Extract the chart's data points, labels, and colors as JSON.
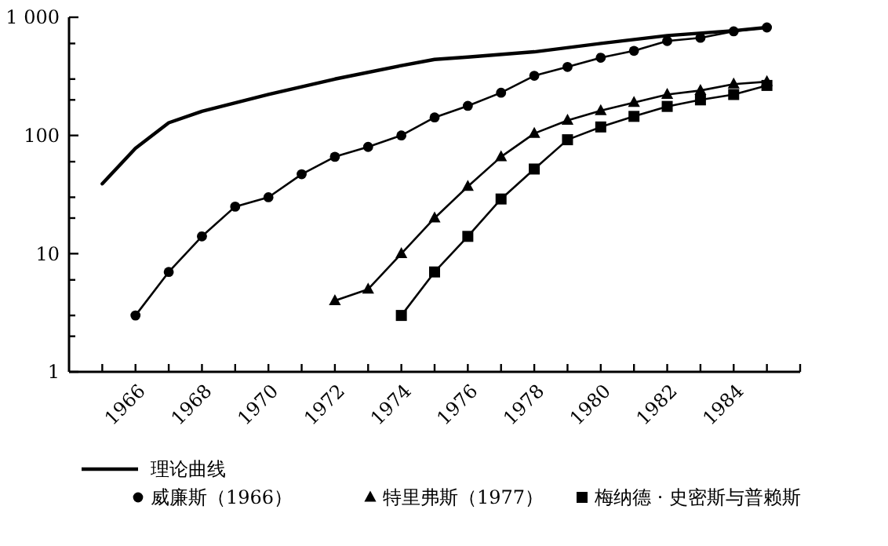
{
  "chart_data": {
    "type": "line",
    "log": "y",
    "xlim": [
      1964,
      1986
    ],
    "xticks": [
      {
        "value": 1965,
        "label": null
      },
      1966,
      {
        "value": 1967,
        "label": null
      },
      1968,
      {
        "value": 1969,
        "label": null
      },
      1970,
      {
        "value": 1971,
        "label": null
      },
      1972,
      {
        "value": 1973,
        "label": null
      },
      1974,
      {
        "value": 1975,
        "label": null
      },
      1976,
      {
        "value": 1977,
        "label": null
      },
      1978,
      {
        "value": 1979,
        "label": null
      },
      1980,
      {
        "value": 1981,
        "label": null
      },
      1982,
      {
        "value": 1983,
        "label": null
      },
      1984,
      {
        "value": 1985,
        "label": null
      },
      {
        "value": 1986,
        "label": null
      }
    ],
    "ylim": [
      1,
      1000
    ],
    "yticks": [
      1,
      {
        "value": 2,
        "label": null
      },
      {
        "value": 3,
        "label": null
      },
      {
        "value": 6,
        "label": null
      },
      10,
      {
        "value": 20,
        "label": null
      },
      {
        "value": 30,
        "label": null
      },
      {
        "value": 60,
        "label": null
      },
      100,
      {
        "value": 200,
        "label": null
      },
      {
        "value": 300,
        "label": null
      },
      {
        "value": 600,
        "label": null
      },
      {
        "value": 1000,
        "label": "1 000"
      }
    ],
    "grid": false,
    "legend": "bottom",
    "series": [
      {
        "name": "理论曲线",
        "color": "#000000",
        "marker": "none",
        "x": [
          1965,
          1966,
          1967,
          1968,
          1970,
          1972,
          1974,
          1975,
          1976,
          1978,
          1980,
          1982,
          1984,
          1985
        ],
        "values": [
          39,
          78,
          128,
          160,
          222,
          300,
          390,
          440,
          460,
          510,
          600,
          700,
          770,
          820
        ]
      },
      {
        "name": "威廉斯（1966）",
        "color": "#000000",
        "marker": "circle",
        "x": [
          1966,
          1967,
          1968,
          1969,
          1970,
          1971,
          1972,
          1973,
          1974,
          1975,
          1976,
          1977,
          1978,
          1979,
          1980,
          1981,
          1982,
          1983,
          1984,
          1985
        ],
        "values": [
          3,
          7,
          14,
          25,
          30,
          47,
          66,
          80,
          100,
          142,
          178,
          230,
          320,
          380,
          455,
          520,
          630,
          670,
          760,
          820
        ]
      },
      {
        "name": "特里弗斯（1977）",
        "color": "#000000",
        "marker": "triangle",
        "x": [
          1972,
          1973,
          1974,
          1975,
          1976,
          1977,
          1978,
          1979,
          1980,
          1981,
          1982,
          1983,
          1984,
          1985
        ],
        "values": [
          4,
          5,
          10,
          20,
          37,
          66,
          104,
          134,
          162,
          190,
          222,
          240,
          272,
          285
        ]
      },
      {
        "name": "梅纳德 · 史密斯与普赖斯",
        "color": "#000000",
        "marker": "square",
        "x": [
          1974,
          1975,
          1976,
          1977,
          1978,
          1979,
          1980,
          1981,
          1982,
          1983,
          1984,
          1985
        ],
        "values": [
          3,
          7,
          14,
          29,
          52,
          92,
          118,
          145,
          176,
          200,
          222,
          265
        ]
      }
    ]
  }
}
